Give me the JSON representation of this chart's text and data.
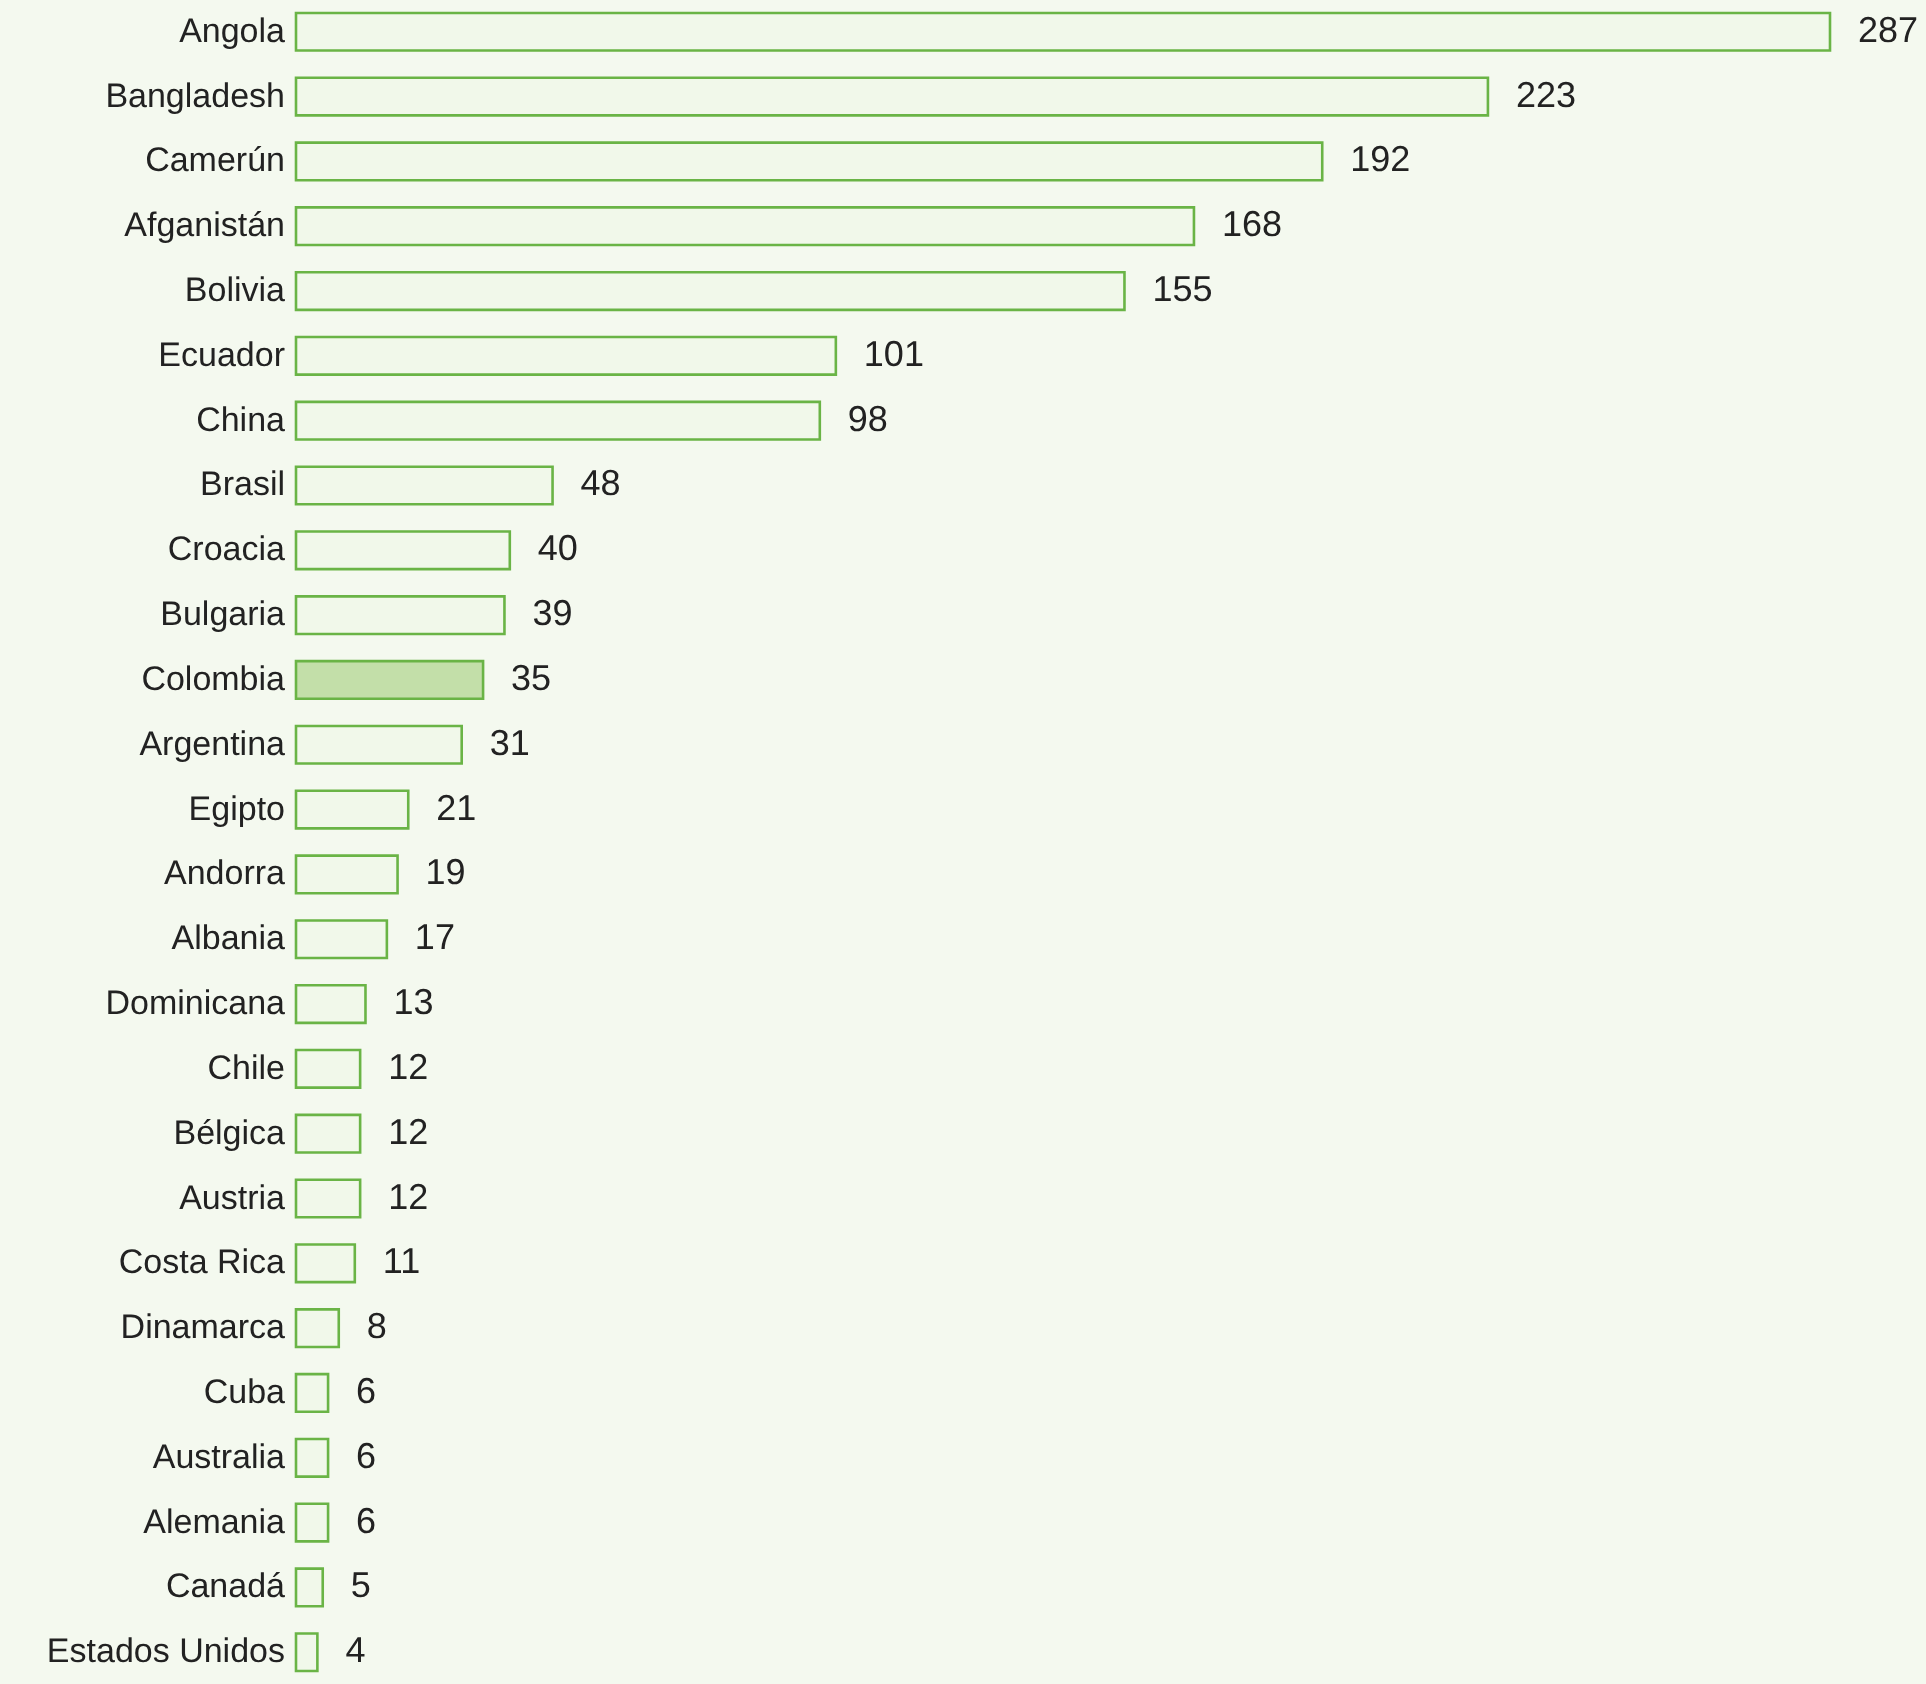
{
  "chart_data": {
    "type": "bar",
    "orientation": "horizontal",
    "data_labels": true,
    "categories": [
      "Angola",
      "Bangladesh",
      "Camerún",
      "Afganistán",
      "Bolivia",
      "Ecuador",
      "China",
      "Brasil",
      "Croacia",
      "Bulgaria",
      "Colombia",
      "Argentina",
      "Egipto",
      "Andorra",
      "Albania",
      "Dominicana",
      "Chile",
      "Bélgica",
      "Austria",
      "Costa Rica",
      "Dinamarca",
      "Cuba",
      "Australia",
      "Alemania",
      "Canadá",
      "Estados Unidos"
    ],
    "values": [
      287,
      223,
      192,
      168,
      155,
      101,
      98,
      48,
      40,
      39,
      35,
      31,
      21,
      19,
      17,
      13,
      12,
      12,
      12,
      11,
      8,
      6,
      6,
      6,
      5,
      4
    ],
    "color": "#6ab446",
    "colors": [
      "#f1f8ea",
      "#f1f8ea",
      "#f1f8ea",
      "#f1f8ea",
      "#f1f8ea",
      "#f1f8ea",
      "#f1f8ea",
      "#f1f8ea",
      "#f1f8ea",
      "#f1f8ea",
      "#c3dfa9",
      "#f1f8ea",
      "#f1f8ea",
      "#f1f8ea",
      "#f1f8ea",
      "#f1f8ea",
      "#f1f8ea",
      "#f1f8ea",
      "#f1f8ea",
      "#f1f8ea",
      "#f1f8ea",
      "#f1f8ea",
      "#f1f8ea",
      "#f1f8ea",
      "#f1f8ea",
      "#f1f8ea"
    ],
    "grid": false
  }
}
